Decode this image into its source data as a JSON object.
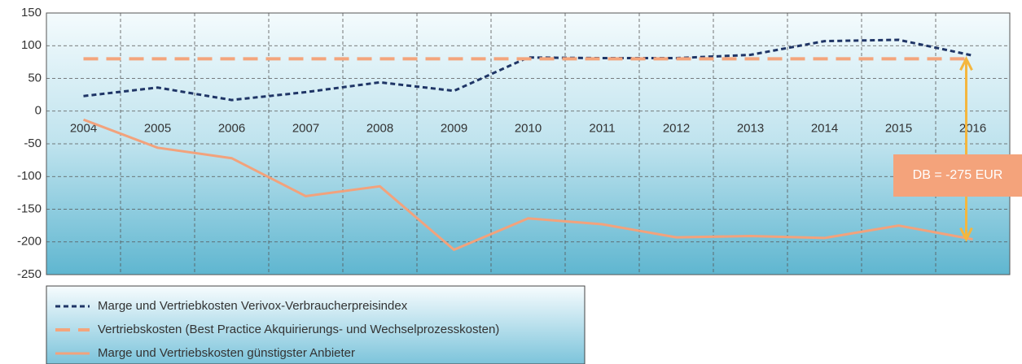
{
  "chart_data": {
    "type": "line",
    "categories": [
      "2004",
      "2005",
      "2006",
      "2007",
      "2008",
      "2009",
      "2010",
      "2011",
      "2012",
      "2013",
      "2014",
      "2015",
      "2016"
    ],
    "series": [
      {
        "name": "Marge und Vertriebkosten Verivox-Verbraucherpreisindex",
        "color": "#1f3566",
        "style": "dashed",
        "values": [
          23,
          36,
          17,
          29,
          44,
          31,
          82,
          81,
          81,
          86,
          107,
          109,
          85
        ]
      },
      {
        "name": "Vertriebskosten (Best Practice Akquirierungs- und Wechselprozesskosten)",
        "color": "#f4a57c",
        "style": "longdash",
        "values": [
          80,
          80,
          80,
          80,
          80,
          80,
          80,
          80,
          80,
          80,
          80,
          80,
          80
        ]
      },
      {
        "name": "Marge und Vertriebskosten günstigster Anbieter",
        "color": "#f2a27c",
        "style": "solid",
        "values": [
          -13,
          -56,
          -72,
          -130,
          -115,
          -212,
          -164,
          -173,
          -193,
          -191,
          -194,
          -175,
          -196
        ]
      }
    ],
    "annotation": "DB = -275 EUR",
    "ylim": [
      -250,
      150
    ],
    "yticks": [
      -250,
      -200,
      -150,
      -100,
      -50,
      0,
      50,
      100,
      150
    ],
    "grid": true
  }
}
